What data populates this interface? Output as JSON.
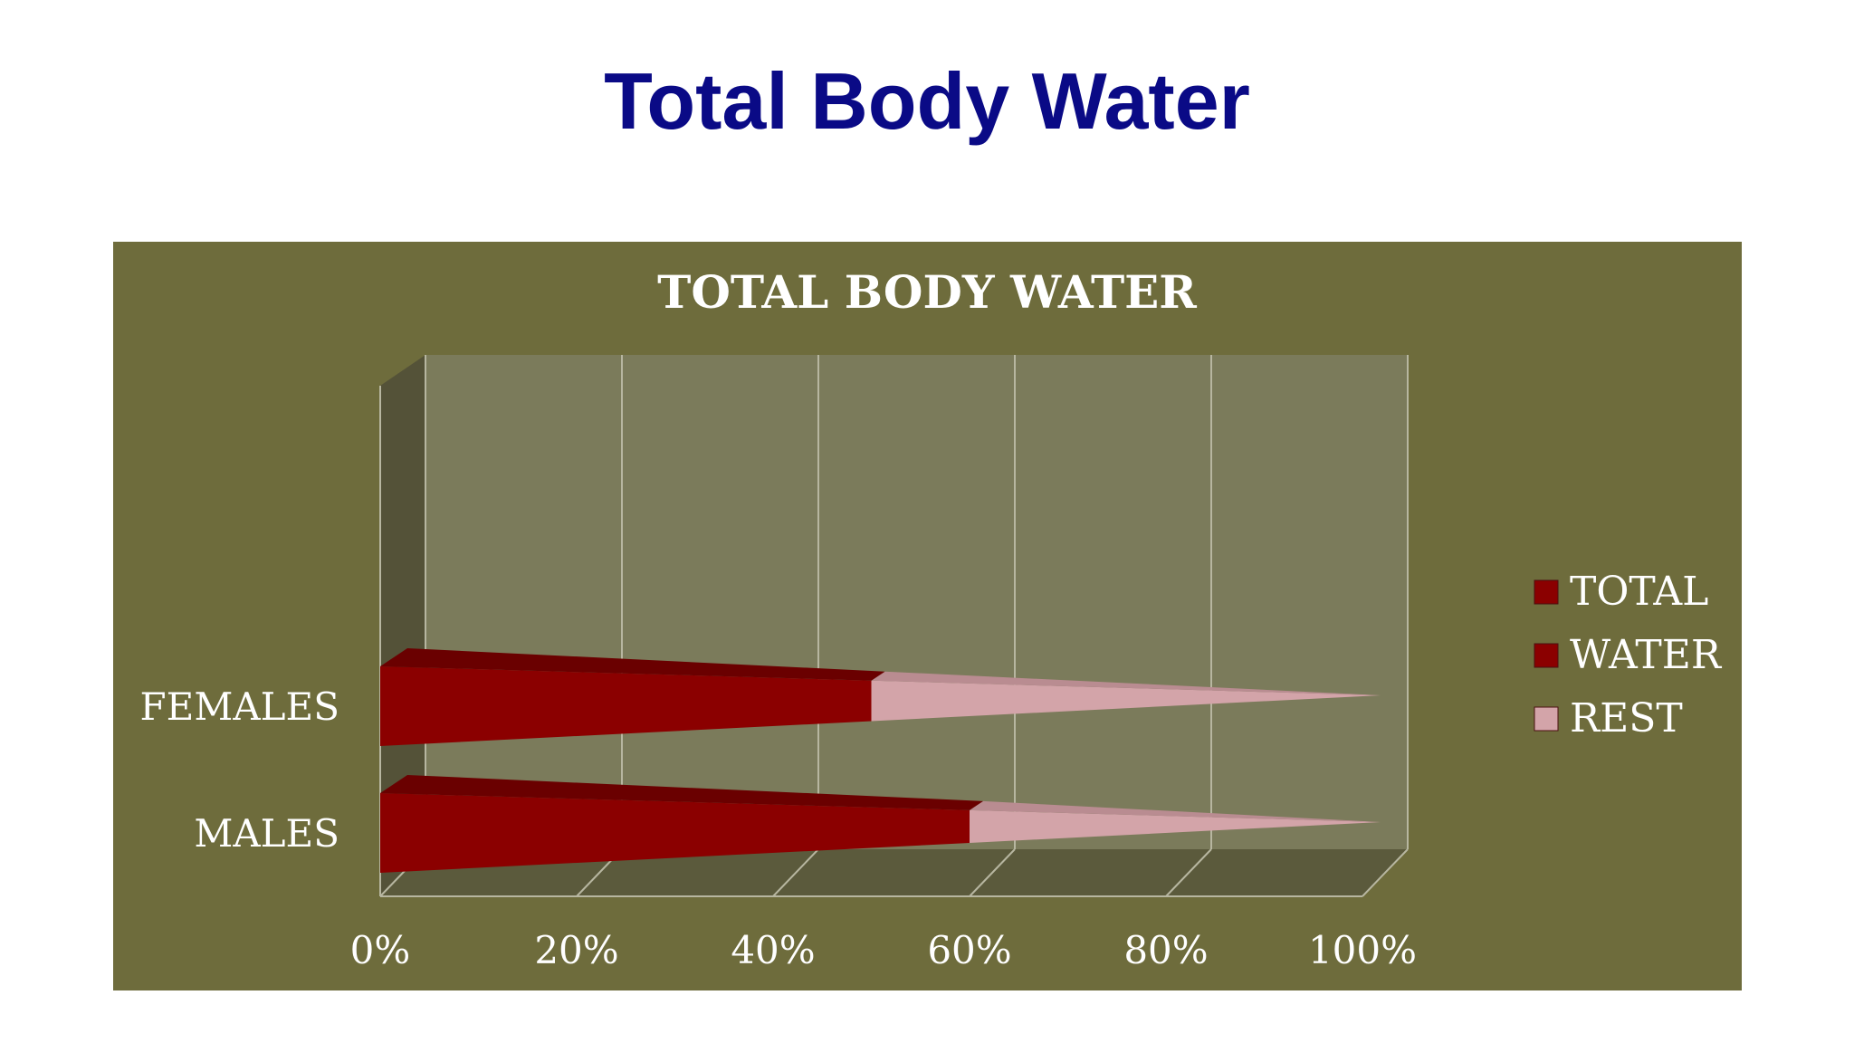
{
  "slide": {
    "title": "Total Body Water"
  },
  "colors": {
    "title": "#0a0a86",
    "panel": "#6e6c3c",
    "plot_back": "#7b7b5b",
    "side_wall": "#545238",
    "floor": "#5b5a3c",
    "gridline": "#b7b6a0",
    "total": "#8b0000",
    "water": "#8b0000",
    "rest": "#d3a4a9"
  },
  "chart_data": {
    "type": "bar",
    "orientation": "horizontal",
    "stacked": "percent",
    "shape": "3d-cone",
    "title": "TOTAL BODY WATER",
    "categories": [
      "MALES",
      "FEMALES"
    ],
    "series": [
      {
        "name": "TOTAL",
        "values": [
          0,
          0
        ]
      },
      {
        "name": "WATER",
        "values": [
          60,
          50
        ]
      },
      {
        "name": "REST",
        "values": [
          40,
          50
        ]
      }
    ],
    "x_ticks": [
      "0%",
      "20%",
      "40%",
      "60%",
      "80%",
      "100%"
    ],
    "xlim": [
      0,
      100
    ],
    "legend_position": "right",
    "grid": true
  }
}
